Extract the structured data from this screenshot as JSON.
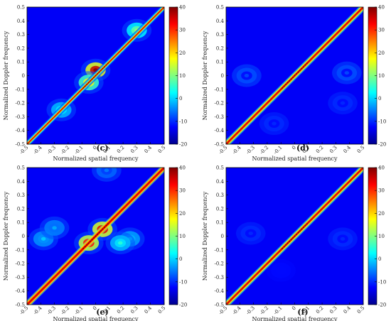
{
  "chart_data": [
    {
      "type": "heatmap",
      "caption": "(c)",
      "xlabel": "Normalized spatial frequency",
      "ylabel": "Normalized Doppler frequency",
      "xlim": [
        -0.5,
        0.5
      ],
      "ylim": [
        -0.5,
        0.5
      ],
      "xticks": [
        "-0.5",
        "-0.4",
        "-0.3",
        "-0.2",
        "-0.1",
        "0",
        "0.1",
        "0.2",
        "0.3",
        "0.4",
        "0.5"
      ],
      "yticks": [
        "-0.5",
        "-0.4",
        "-0.3",
        "-0.2",
        "-0.1",
        "0",
        "0.1",
        "0.2",
        "0.3",
        "0.4",
        "0.5"
      ],
      "colorbar": {
        "min": -20,
        "max": 40,
        "ticks": [
          "40",
          "30",
          "20",
          "10",
          "0",
          "-10",
          "-20"
        ]
      },
      "ridge": {
        "x0": -0.5,
        "y0": -0.5,
        "x1": 0.5,
        "y1": 0.5,
        "value_center": 40,
        "value_edge": 0
      },
      "peaks": [
        {
          "x": 0.0,
          "y": 0.04,
          "value": 40
        },
        {
          "x": -0.05,
          "y": -0.05,
          "value": 20
        },
        {
          "x": 0.3,
          "y": 0.33,
          "value": 12
        },
        {
          "x": -0.25,
          "y": -0.25,
          "value": 5
        }
      ]
    },
    {
      "type": "heatmap",
      "caption": "(d)",
      "xlabel": "Normalized spatial frequency",
      "ylabel": "Normalized Doppler frequency",
      "xlim": [
        -0.5,
        0.5
      ],
      "ylim": [
        -0.5,
        0.5
      ],
      "xticks": [
        "-0.5",
        "-0.4",
        "-0.3",
        "-0.2",
        "-0.1",
        "0",
        "0.1",
        "0.2",
        "0.3",
        "0.4",
        "0.5"
      ],
      "yticks": [
        "-0.5",
        "-0.4",
        "-0.3",
        "-0.2",
        "-0.1",
        "0",
        "0.1",
        "0.2",
        "0.3",
        "0.4",
        "0.5"
      ],
      "colorbar": {
        "min": -20,
        "max": 40,
        "ticks": [
          "40",
          "30",
          "20",
          "10",
          "0",
          "-10",
          "-20"
        ]
      },
      "ridge": {
        "x0": -0.5,
        "y0": -0.5,
        "x1": 0.5,
        "y1": 0.5,
        "value_center": 40,
        "value_edge": 15
      },
      "peaks": [
        {
          "x": -0.35,
          "y": 0.0,
          "value": -8
        },
        {
          "x": 0.38,
          "y": 0.02,
          "value": -8
        },
        {
          "x": -0.15,
          "y": -0.35,
          "value": -10
        },
        {
          "x": 0.35,
          "y": -0.2,
          "value": -10
        }
      ]
    },
    {
      "type": "heatmap",
      "caption": "(e)",
      "xlabel": "Normalized spatial frequency",
      "ylabel": "Normalized Doppler frequency",
      "xlim": [
        -0.5,
        0.5
      ],
      "ylim": [
        -0.5,
        0.5
      ],
      "xticks": [
        "-0.5",
        "-0.4",
        "-0.3",
        "-0.2",
        "-0.1",
        "0",
        "0.1",
        "0.2",
        "0.3",
        "0.4",
        "0.5"
      ],
      "yticks": [
        "-0.5",
        "-0.4",
        "-0.3",
        "-0.2",
        "-0.1",
        "0",
        "0.1",
        "0.2",
        "0.3",
        "0.4",
        "0.5"
      ],
      "colorbar": {
        "min": -20,
        "max": 40,
        "ticks": [
          "40",
          "30",
          "20",
          "10",
          "0",
          "-10",
          "-20"
        ]
      },
      "ridge": {
        "x0": -0.5,
        "y0": -0.5,
        "x1": 0.5,
        "y1": 0.5,
        "value_center": 40,
        "value_edge": 20
      },
      "peaks": [
        {
          "x": 0.05,
          "y": 0.05,
          "value": 38
        },
        {
          "x": -0.05,
          "y": -0.05,
          "value": 36
        },
        {
          "x": -0.38,
          "y": -0.02,
          "value": 0
        },
        {
          "x": -0.3,
          "y": 0.06,
          "value": -2
        },
        {
          "x": 0.25,
          "y": -0.02,
          "value": 2
        },
        {
          "x": 0.18,
          "y": -0.05,
          "value": 5
        },
        {
          "x": 0.08,
          "y": 0.48,
          "value": -5
        }
      ]
    },
    {
      "type": "heatmap",
      "caption": "(f)",
      "xlabel": "Normalized spatial frequency",
      "ylabel": "Normalized Doppler frequency",
      "xlim": [
        -0.5,
        0.5
      ],
      "ylim": [
        -0.5,
        0.5
      ],
      "xticks": [
        "-0.5",
        "-0.4",
        "-0.3",
        "-0.2",
        "-0.1",
        "0",
        "0.1",
        "0.2",
        "0.3",
        "0.4",
        "0.5"
      ],
      "yticks": [
        "-0.5",
        "-0.4",
        "-0.3",
        "-0.2",
        "-0.1",
        "0",
        "0.1",
        "0.2",
        "0.3",
        "0.4",
        "0.5"
      ],
      "colorbar": {
        "min": -20,
        "max": 40,
        "ticks": [
          "40",
          "30",
          "20",
          "10",
          "0",
          "-10",
          "-20"
        ]
      },
      "ridge": {
        "x0": -0.5,
        "y0": -0.5,
        "x1": 0.5,
        "y1": 0.5,
        "value_center": 40,
        "value_edge": 15
      },
      "peaks": [
        {
          "x": -0.32,
          "y": 0.02,
          "value": -10
        },
        {
          "x": 0.35,
          "y": -0.02,
          "value": -10
        },
        {
          "x": -0.1,
          "y": -0.25,
          "value": -12
        }
      ]
    }
  ]
}
